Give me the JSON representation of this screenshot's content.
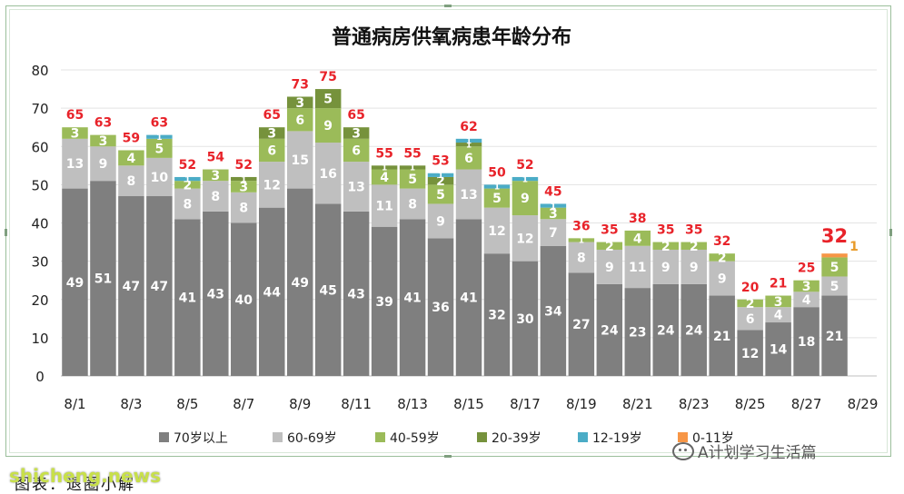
{
  "chart_data": {
    "type": "bar",
    "stacked": true,
    "title": "普通病房供氧病患年龄分布",
    "ylim": [
      0,
      80
    ],
    "yticks": [
      0,
      10,
      20,
      30,
      40,
      50,
      60,
      70,
      80
    ],
    "categories": [
      "8/1",
      "8/2",
      "8/3",
      "8/4",
      "8/5",
      "8/6",
      "8/7",
      "8/8",
      "8/9",
      "8/10",
      "8/11",
      "8/12",
      "8/13",
      "8/14",
      "8/15",
      "8/16",
      "8/17",
      "8/18",
      "8/19",
      "8/20",
      "8/21",
      "8/22",
      "8/23",
      "8/24",
      "8/25",
      "8/26",
      "8/27",
      "8/28",
      "8/29"
    ],
    "xtick_labels": [
      "8/1",
      "",
      "8/3",
      "",
      "8/5",
      "",
      "8/7",
      "",
      "8/9",
      "",
      "8/11",
      "",
      "8/13",
      "",
      "8/15",
      "",
      "8/17",
      "",
      "8/19",
      "",
      "8/21",
      "",
      "8/23",
      "",
      "8/25",
      "",
      "8/27",
      "",
      "8/29"
    ],
    "series": [
      {
        "name": "70岁以上",
        "color": "#7f7f7f",
        "values": [
          49,
          51,
          47,
          47,
          41,
          43,
          40,
          44,
          49,
          45,
          43,
          39,
          41,
          36,
          41,
          32,
          30,
          34,
          27,
          24,
          23,
          24,
          24,
          21,
          12,
          14,
          18,
          21,
          null
        ]
      },
      {
        "name": "60-69岁",
        "color": "#bfbfbf",
        "values": [
          13,
          9,
          8,
          10,
          8,
          8,
          8,
          12,
          15,
          16,
          13,
          11,
          8,
          9,
          13,
          12,
          12,
          7,
          8,
          9,
          11,
          9,
          9,
          9,
          6,
          4,
          4,
          5,
          null
        ]
      },
      {
        "name": "40-59岁",
        "color": "#9bbb59",
        "values": [
          3,
          3,
          4,
          5,
          2,
          3,
          3,
          6,
          6,
          9,
          6,
          4,
          5,
          5,
          6,
          5,
          9,
          3,
          1,
          2,
          4,
          2,
          2,
          2,
          2,
          3,
          3,
          5,
          null
        ]
      },
      {
        "name": "20-39岁",
        "color": "#76923c",
        "values": [
          0,
          0,
          0,
          0,
          0,
          0,
          1,
          3,
          3,
          5,
          3,
          1,
          1,
          2,
          1,
          0,
          0,
          0,
          0,
          0,
          0,
          0,
          0,
          0,
          0,
          0,
          0,
          0,
          null
        ]
      },
      {
        "name": "12-19岁",
        "color": "#4bacc6",
        "values": [
          0,
          0,
          0,
          1,
          1,
          0,
          0,
          0,
          0,
          0,
          0,
          0,
          0,
          1,
          1,
          1,
          1,
          1,
          0,
          0,
          0,
          0,
          0,
          0,
          0,
          0,
          0,
          0,
          null
        ]
      },
      {
        "name": "0-11岁",
        "color": "#f79646",
        "values": [
          0,
          0,
          0,
          0,
          0,
          0,
          0,
          0,
          0,
          0,
          0,
          0,
          0,
          0,
          0,
          0,
          0,
          0,
          0,
          0,
          0,
          0,
          0,
          0,
          0,
          0,
          0,
          1,
          null
        ]
      }
    ],
    "segment_labels": [
      [
        "49",
        "13",
        "3",
        "",
        "",
        ""
      ],
      [
        "51",
        "9",
        "3",
        "",
        "",
        ""
      ],
      [
        "47",
        "8",
        "4",
        "",
        "",
        ""
      ],
      [
        "47",
        "10",
        "5",
        "",
        "1",
        ""
      ],
      [
        "41",
        "8",
        "2",
        "",
        "1",
        ""
      ],
      [
        "43",
        "8",
        "3",
        "",
        "",
        ""
      ],
      [
        "40",
        "8",
        "3",
        "1",
        "",
        ""
      ],
      [
        "44",
        "12",
        "6",
        "3",
        "",
        ""
      ],
      [
        "49",
        "15",
        "6",
        "3",
        "",
        ""
      ],
      [
        "45",
        "16",
        "9",
        "5",
        "",
        ""
      ],
      [
        "43",
        "13",
        "6",
        "3",
        "",
        ""
      ],
      [
        "39",
        "11",
        "4",
        "1",
        "",
        ""
      ],
      [
        "41",
        "8",
        "5",
        "1",
        "",
        ""
      ],
      [
        "36",
        "9",
        "5",
        "2",
        "1",
        ""
      ],
      [
        "41",
        "13",
        "6",
        "1",
        "1",
        ""
      ],
      [
        "32",
        "12",
        "5",
        "",
        "1",
        ""
      ],
      [
        "30",
        "12",
        "9",
        "",
        "1",
        ""
      ],
      [
        "34",
        "7",
        "3",
        "",
        "1",
        ""
      ],
      [
        "27",
        "8",
        "1",
        "",
        "",
        ""
      ],
      [
        "24",
        "9",
        "2",
        "",
        "",
        ""
      ],
      [
        "23",
        "11",
        "4",
        "",
        "",
        ""
      ],
      [
        "24",
        "9",
        "2",
        "",
        "",
        ""
      ],
      [
        "24",
        "9",
        "2",
        "",
        "",
        ""
      ],
      [
        "21",
        "9",
        "2",
        "",
        "",
        ""
      ],
      [
        "12",
        "6",
        "2",
        "",
        "",
        ""
      ],
      [
        "14",
        "4",
        "3",
        "",
        "",
        ""
      ],
      [
        "18",
        "4",
        "3",
        "",
        "",
        ""
      ],
      [
        "21",
        "5",
        "5",
        "",
        "",
        ""
      ],
      [
        "",
        "",
        "",
        "",
        "",
        ""
      ]
    ],
    "totals": [
      "65",
      "63",
      "59",
      "63",
      "52",
      "54",
      "52",
      "65",
      "73",
      "75",
      "65",
      "55",
      "55",
      "53",
      "62",
      "50",
      "52",
      "45",
      "36",
      "35",
      "38",
      "35",
      "35",
      "32",
      "20",
      "21",
      "25",
      "32",
      ""
    ],
    "side_label": "1",
    "legend_position": "bottom",
    "grid": "horizontal"
  },
  "caption": "图表：退圈小解",
  "watermark_left": "shicheng.news",
  "watermark_right": "A计划学习生活篇"
}
